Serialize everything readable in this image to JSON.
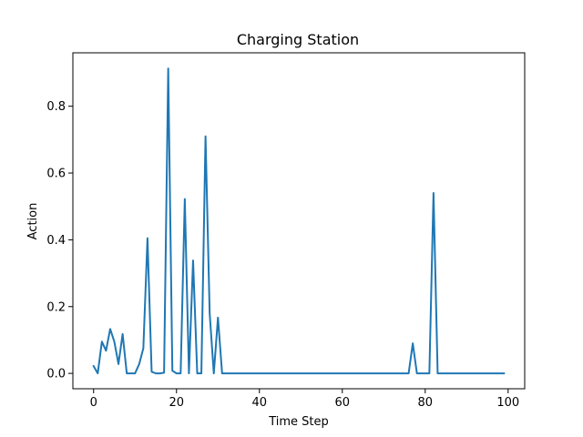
{
  "chart_data": {
    "type": "line",
    "title": "Charging Station",
    "xlabel": "Time Step",
    "ylabel": "Action",
    "xlim": [
      -5,
      104
    ],
    "ylim": [
      -0.046,
      0.96
    ],
    "xticks": [
      0,
      20,
      40,
      60,
      80,
      100
    ],
    "xtick_labels": [
      "0",
      "20",
      "40",
      "60",
      "80",
      "100"
    ],
    "yticks": [
      0.0,
      0.2,
      0.4,
      0.6,
      0.8
    ],
    "ytick_labels": [
      "0.0",
      "0.2",
      "0.4",
      "0.6",
      "0.8"
    ],
    "grid": false,
    "series": [
      {
        "color": "#1f77b4",
        "x": [
          0,
          1,
          2,
          3,
          4,
          5,
          6,
          7,
          8,
          9,
          10,
          11,
          12,
          13,
          14,
          15,
          16,
          17,
          18,
          19,
          20,
          21,
          22,
          23,
          24,
          25,
          26,
          27,
          28,
          29,
          30,
          31,
          32,
          33,
          34,
          35,
          36,
          37,
          38,
          39,
          40,
          41,
          42,
          43,
          44,
          45,
          46,
          47,
          48,
          49,
          50,
          51,
          52,
          53,
          54,
          55,
          56,
          57,
          58,
          59,
          60,
          61,
          62,
          63,
          64,
          65,
          66,
          67,
          68,
          69,
          70,
          71,
          72,
          73,
          74,
          75,
          76,
          77,
          78,
          79,
          80,
          81,
          82,
          83,
          84,
          85,
          86,
          87,
          88,
          89,
          90,
          91,
          92,
          93,
          94,
          95,
          96,
          97,
          98,
          99
        ],
        "values": [
          0.022,
          0.0,
          0.095,
          0.068,
          0.133,
          0.095,
          0.028,
          0.118,
          0.0,
          0.0,
          0.0,
          0.028,
          0.075,
          0.405,
          0.005,
          0.0,
          0.0,
          0.002,
          0.913,
          0.008,
          0.0,
          0.0,
          0.522,
          0.0,
          0.338,
          0.0,
          0.0,
          0.71,
          0.18,
          0.0,
          0.167,
          0.0,
          0.0,
          0.0,
          0.0,
          0.0,
          0.0,
          0.0,
          0.0,
          0.0,
          0.0,
          0.0,
          0.0,
          0.0,
          0.0,
          0.0,
          0.0,
          0.0,
          0.0,
          0.0,
          0.0,
          0.0,
          0.0,
          0.0,
          0.0,
          0.0,
          0.0,
          0.0,
          0.0,
          0.0,
          0.0,
          0.0,
          0.0,
          0.0,
          0.0,
          0.0,
          0.0,
          0.0,
          0.0,
          0.0,
          0.0,
          0.0,
          0.0,
          0.0,
          0.0,
          0.0,
          0.0,
          0.09,
          0.0,
          0.0,
          0.0,
          0.0,
          0.54,
          0.0,
          0.0,
          0.0,
          0.0,
          0.0,
          0.0,
          0.0,
          0.0,
          0.0,
          0.0,
          0.0,
          0.0,
          0.0,
          0.0,
          0.0,
          0.0,
          0.0
        ]
      }
    ]
  }
}
